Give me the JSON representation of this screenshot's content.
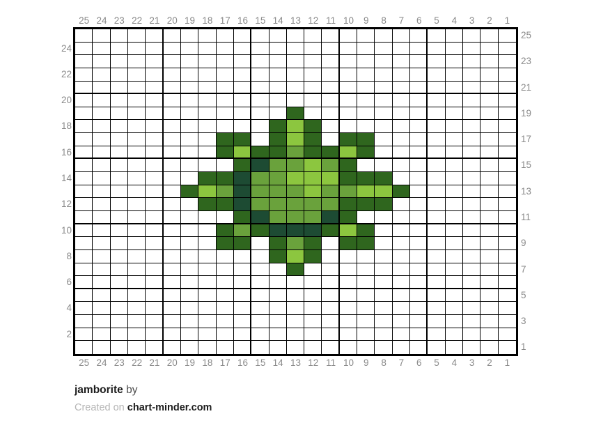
{
  "chart_data": {
    "type": "heatmap",
    "title": "jamborite",
    "grid_columns": 25,
    "grid_rows": 25,
    "column_labels": [
      "25",
      "24",
      "23",
      "22",
      "21",
      "20",
      "19",
      "18",
      "17",
      "16",
      "15",
      "14",
      "13",
      "12",
      "11",
      "10",
      "9",
      "8",
      "7",
      "6",
      "5",
      "4",
      "3",
      "2",
      "1"
    ],
    "row_labels_left": [
      "24",
      "22",
      "20",
      "18",
      "16",
      "14",
      "12",
      "10",
      "8",
      "6",
      "4",
      "2"
    ],
    "row_labels_right": [
      "25",
      "23",
      "21",
      "19",
      "17",
      "15",
      "13",
      "11",
      "9",
      "7",
      "5",
      "3",
      "1"
    ],
    "palette": {
      "W": "#ffffff",
      "D": "#2f661e",
      "M": "#6aa23c",
      "L": "#8cc63f",
      "T": "#1d4b33"
    },
    "palette_names": {
      "W": "empty-white",
      "D": "dark-green",
      "M": "medium-green",
      "L": "light-green",
      "T": "pine-green"
    },
    "rows": [
      "WWWWWWWWWWWWWWWWWWWWWWWWW",
      "WWWWWWWWWWWWWWWWWWWWWWWWW",
      "WWWWWWWWWWWWWWWWWWWWWWWWW",
      "WWWWWWWWWWWWWWWWWWWWWWWWW",
      "WWWWWWWWWWWWWWWWWWWWWWWWW",
      "WWWWWWWWWWWWWWWWWWWWWWWWW",
      "WWWWWWWWWWWWDWWWWWWWWWWWW",
      "WWWWWWWWWWWDLDWWWWWWWWWWW",
      "WWWWWWWWDDWDLDWDDWWWWWWWW",
      "WWWWWWWWDLDDMDDLDWWWWWWWW",
      "WWWWWWWWWDTMMLMDWWWWWWWWW",
      "WWWWWWWDDTMMLLLDDDWWWWWWW",
      "WWWWWWDLMTMMMLMMLLDWWWWWW",
      "WWWWWWWDDTMMMMMDDDWWWWWWW",
      "WWWWWWWWWDTMMMTDWWWWWWWWW",
      "WWWWWWWWDMDTTTDLDWWWWWWWW",
      "WWWWWWWWDDWDMDWDDWWWWWWWW",
      "WWWWWWWWWWWDLDWWWWWWWWWWW",
      "WWWWWWWWWWWWDWWWWWWWWWWWW",
      "WWWWWWWWWWWWWWWWWWWWWWWWW",
      "WWWWWWWWWWWWWWWWWWWWWWWWW",
      "WWWWWWWWWWWWWWWWWWWWWWWWW",
      "WWWWWWWWWWWWWWWWWWWWWWWWW",
      "WWWWWWWWWWWWWWWWWWWWWWWWW",
      "WWWWWWWWWWWWWWWWWWWWWWWWW"
    ],
    "line_color": "#000000",
    "label_color": "#8a8a8a",
    "thick_line_every": 5
  },
  "footer": {
    "title": "jamborite",
    "by_label": "by",
    "credit_prefix": "Created on",
    "credit_site": "chart-minder.com"
  }
}
